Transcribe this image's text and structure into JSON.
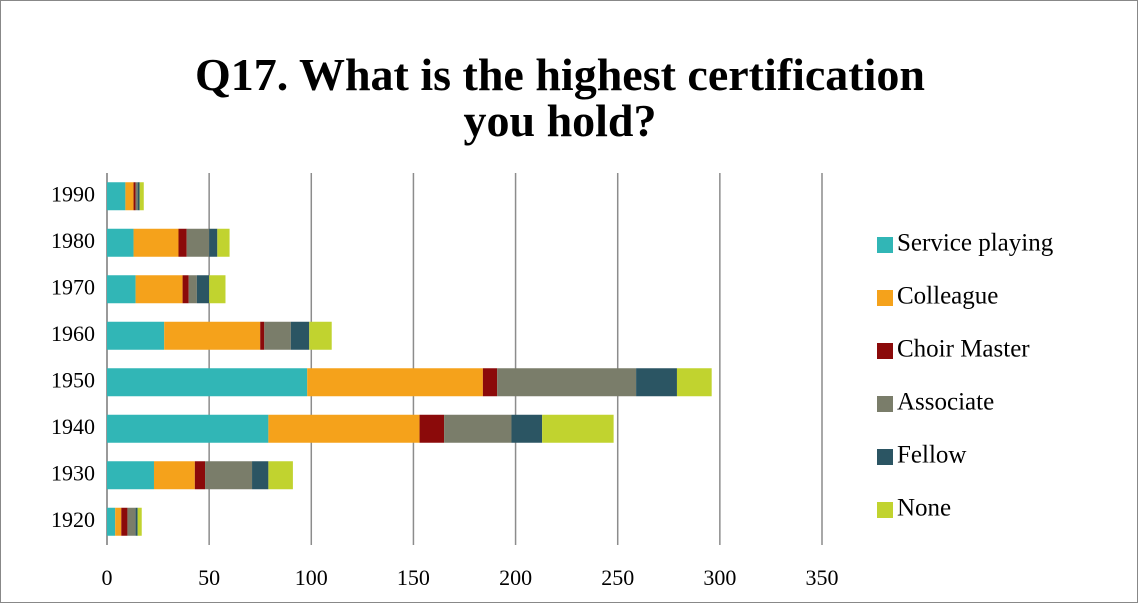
{
  "chart_data": {
    "type": "stacked_barh",
    "title": "Q17. What is the highest certification you hold?",
    "categories": [
      "1990",
      "1980",
      "1970",
      "1960",
      "1950",
      "1940",
      "1930",
      "1920"
    ],
    "series": [
      {
        "name": "Service playing",
        "color": "#31b6b6",
        "values": [
          9,
          13,
          14,
          28,
          98,
          79,
          23,
          4
        ]
      },
      {
        "name": "Colleague",
        "color": "#f5a21b",
        "values": [
          4,
          22,
          23,
          47,
          86,
          74,
          20,
          3
        ]
      },
      {
        "name": "Choir Master",
        "color": "#8b0a0a",
        "values": [
          1,
          4,
          3,
          2,
          7,
          12,
          5,
          3
        ]
      },
      {
        "name": "Associate",
        "color": "#7a7d6a",
        "values": [
          1,
          11,
          4,
          13,
          68,
          33,
          23,
          4
        ]
      },
      {
        "name": "Fellow",
        "color": "#2b5563",
        "values": [
          1,
          4,
          6,
          9,
          20,
          15,
          8,
          1
        ]
      },
      {
        "name": "None",
        "color": "#c1d32f",
        "values": [
          2,
          6,
          8,
          11,
          17,
          35,
          12,
          2
        ]
      }
    ],
    "xlim": [
      0,
      350
    ],
    "xticks": [
      0,
      50,
      100,
      150,
      200,
      250,
      300,
      350
    ],
    "grid": true,
    "legend": "right"
  }
}
